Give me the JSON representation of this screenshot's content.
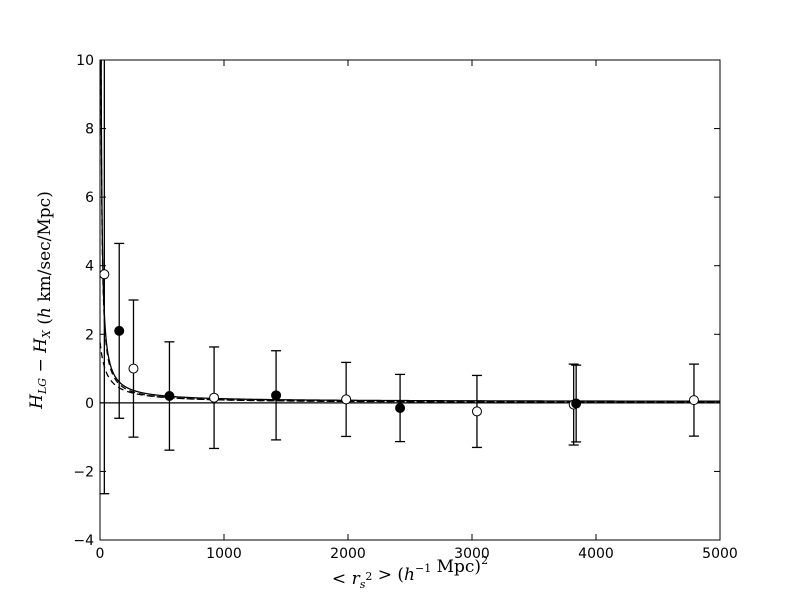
{
  "chart_data": {
    "type": "scatter",
    "xlabel": "< r_s^2 > (h^-1 Mpc)^2",
    "ylabel": "H_LG − H_X (h km/sec/Mpc)",
    "xlim": [
      0,
      5000
    ],
    "ylim": [
      -4,
      10
    ],
    "x_ticks": [
      0,
      1000,
      2000,
      3000,
      4000,
      5000
    ],
    "y_ticks": [
      -4,
      -2,
      0,
      2,
      4,
      6,
      8,
      10
    ],
    "x_tick_labels": [
      "0",
      "1000",
      "2000",
      "3000",
      "4000",
      "5000"
    ],
    "y_tick_labels": [
      "−4",
      "−2",
      "0",
      "2",
      "4",
      "6",
      "8",
      "10"
    ],
    "grid": false,
    "zero_line": true,
    "series": [
      {
        "marker": "open-circle",
        "points": [
          {
            "x": 35,
            "y": 3.75,
            "yerr": 6.4
          },
          {
            "x": 270,
            "y": 1.0,
            "yerr": 2.0
          },
          {
            "x": 920,
            "y": 0.15,
            "yerr": 1.48
          },
          {
            "x": 1985,
            "y": 0.1,
            "yerr": 1.08
          },
          {
            "x": 3040,
            "y": -0.25,
            "yerr": 1.05
          },
          {
            "x": 3820,
            "y": -0.05,
            "yerr": 1.18
          },
          {
            "x": 4790,
            "y": 0.08,
            "yerr": 1.05
          }
        ]
      },
      {
        "marker": "filled-circle",
        "points": [
          {
            "x": 155,
            "y": 2.1,
            "yerr": 2.55
          },
          {
            "x": 560,
            "y": 0.2,
            "yerr": 1.58
          },
          {
            "x": 1420,
            "y": 0.22,
            "yerr": 1.3
          },
          {
            "x": 2420,
            "y": -0.15,
            "yerr": 0.98
          },
          {
            "x": 3840,
            "y": -0.02,
            "yerr": 1.12
          }
        ]
      }
    ],
    "curves": [
      {
        "style": "solid",
        "a": 90,
        "b": 0.03
      },
      {
        "style": "dashed",
        "a": 90,
        "b": 0.0,
        "shift": -50
      },
      {
        "style": "dashed",
        "a": 85,
        "b": 0.0,
        "shift": 0
      }
    ]
  }
}
